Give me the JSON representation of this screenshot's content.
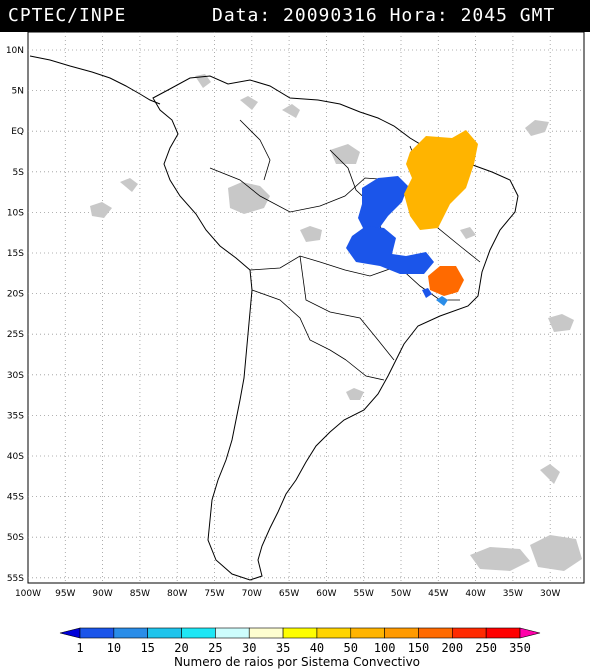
{
  "header": {
    "source": "CPTEC/INPE",
    "date_text": "Data: 20090316",
    "time_text": "Hora: 2045 GMT"
  },
  "map": {
    "lat_labels": [
      "10N",
      "5N",
      "EQ",
      "5S",
      "10S",
      "15S",
      "20S",
      "25S",
      "30S",
      "35S",
      "40S",
      "45S",
      "50S",
      "55S"
    ],
    "lon_labels": [
      "100W",
      "95W",
      "90W",
      "85W",
      "80W",
      "75W",
      "70W",
      "65W",
      "60W",
      "55W",
      "50W",
      "45W",
      "40W",
      "35W",
      "30W"
    ]
  },
  "colorbar": {
    "labels": [
      "1",
      "10",
      "15",
      "20",
      "25",
      "30",
      "35",
      "40",
      "50",
      "100",
      "150",
      "200",
      "250",
      "350"
    ],
    "colors": [
      "#0000d8",
      "#1b55ea",
      "#2a8de8",
      "#1fc4ec",
      "#1ee7f5",
      "#cdfdfd",
      "#fefed0",
      "#fefe00",
      "#ffd400",
      "#ffb400",
      "#ff9a00",
      "#ff6a00",
      "#ff2a00",
      "#ff0000",
      "#ff00aa"
    ],
    "title": "Numero de raios por Sistema Convectivo"
  }
}
